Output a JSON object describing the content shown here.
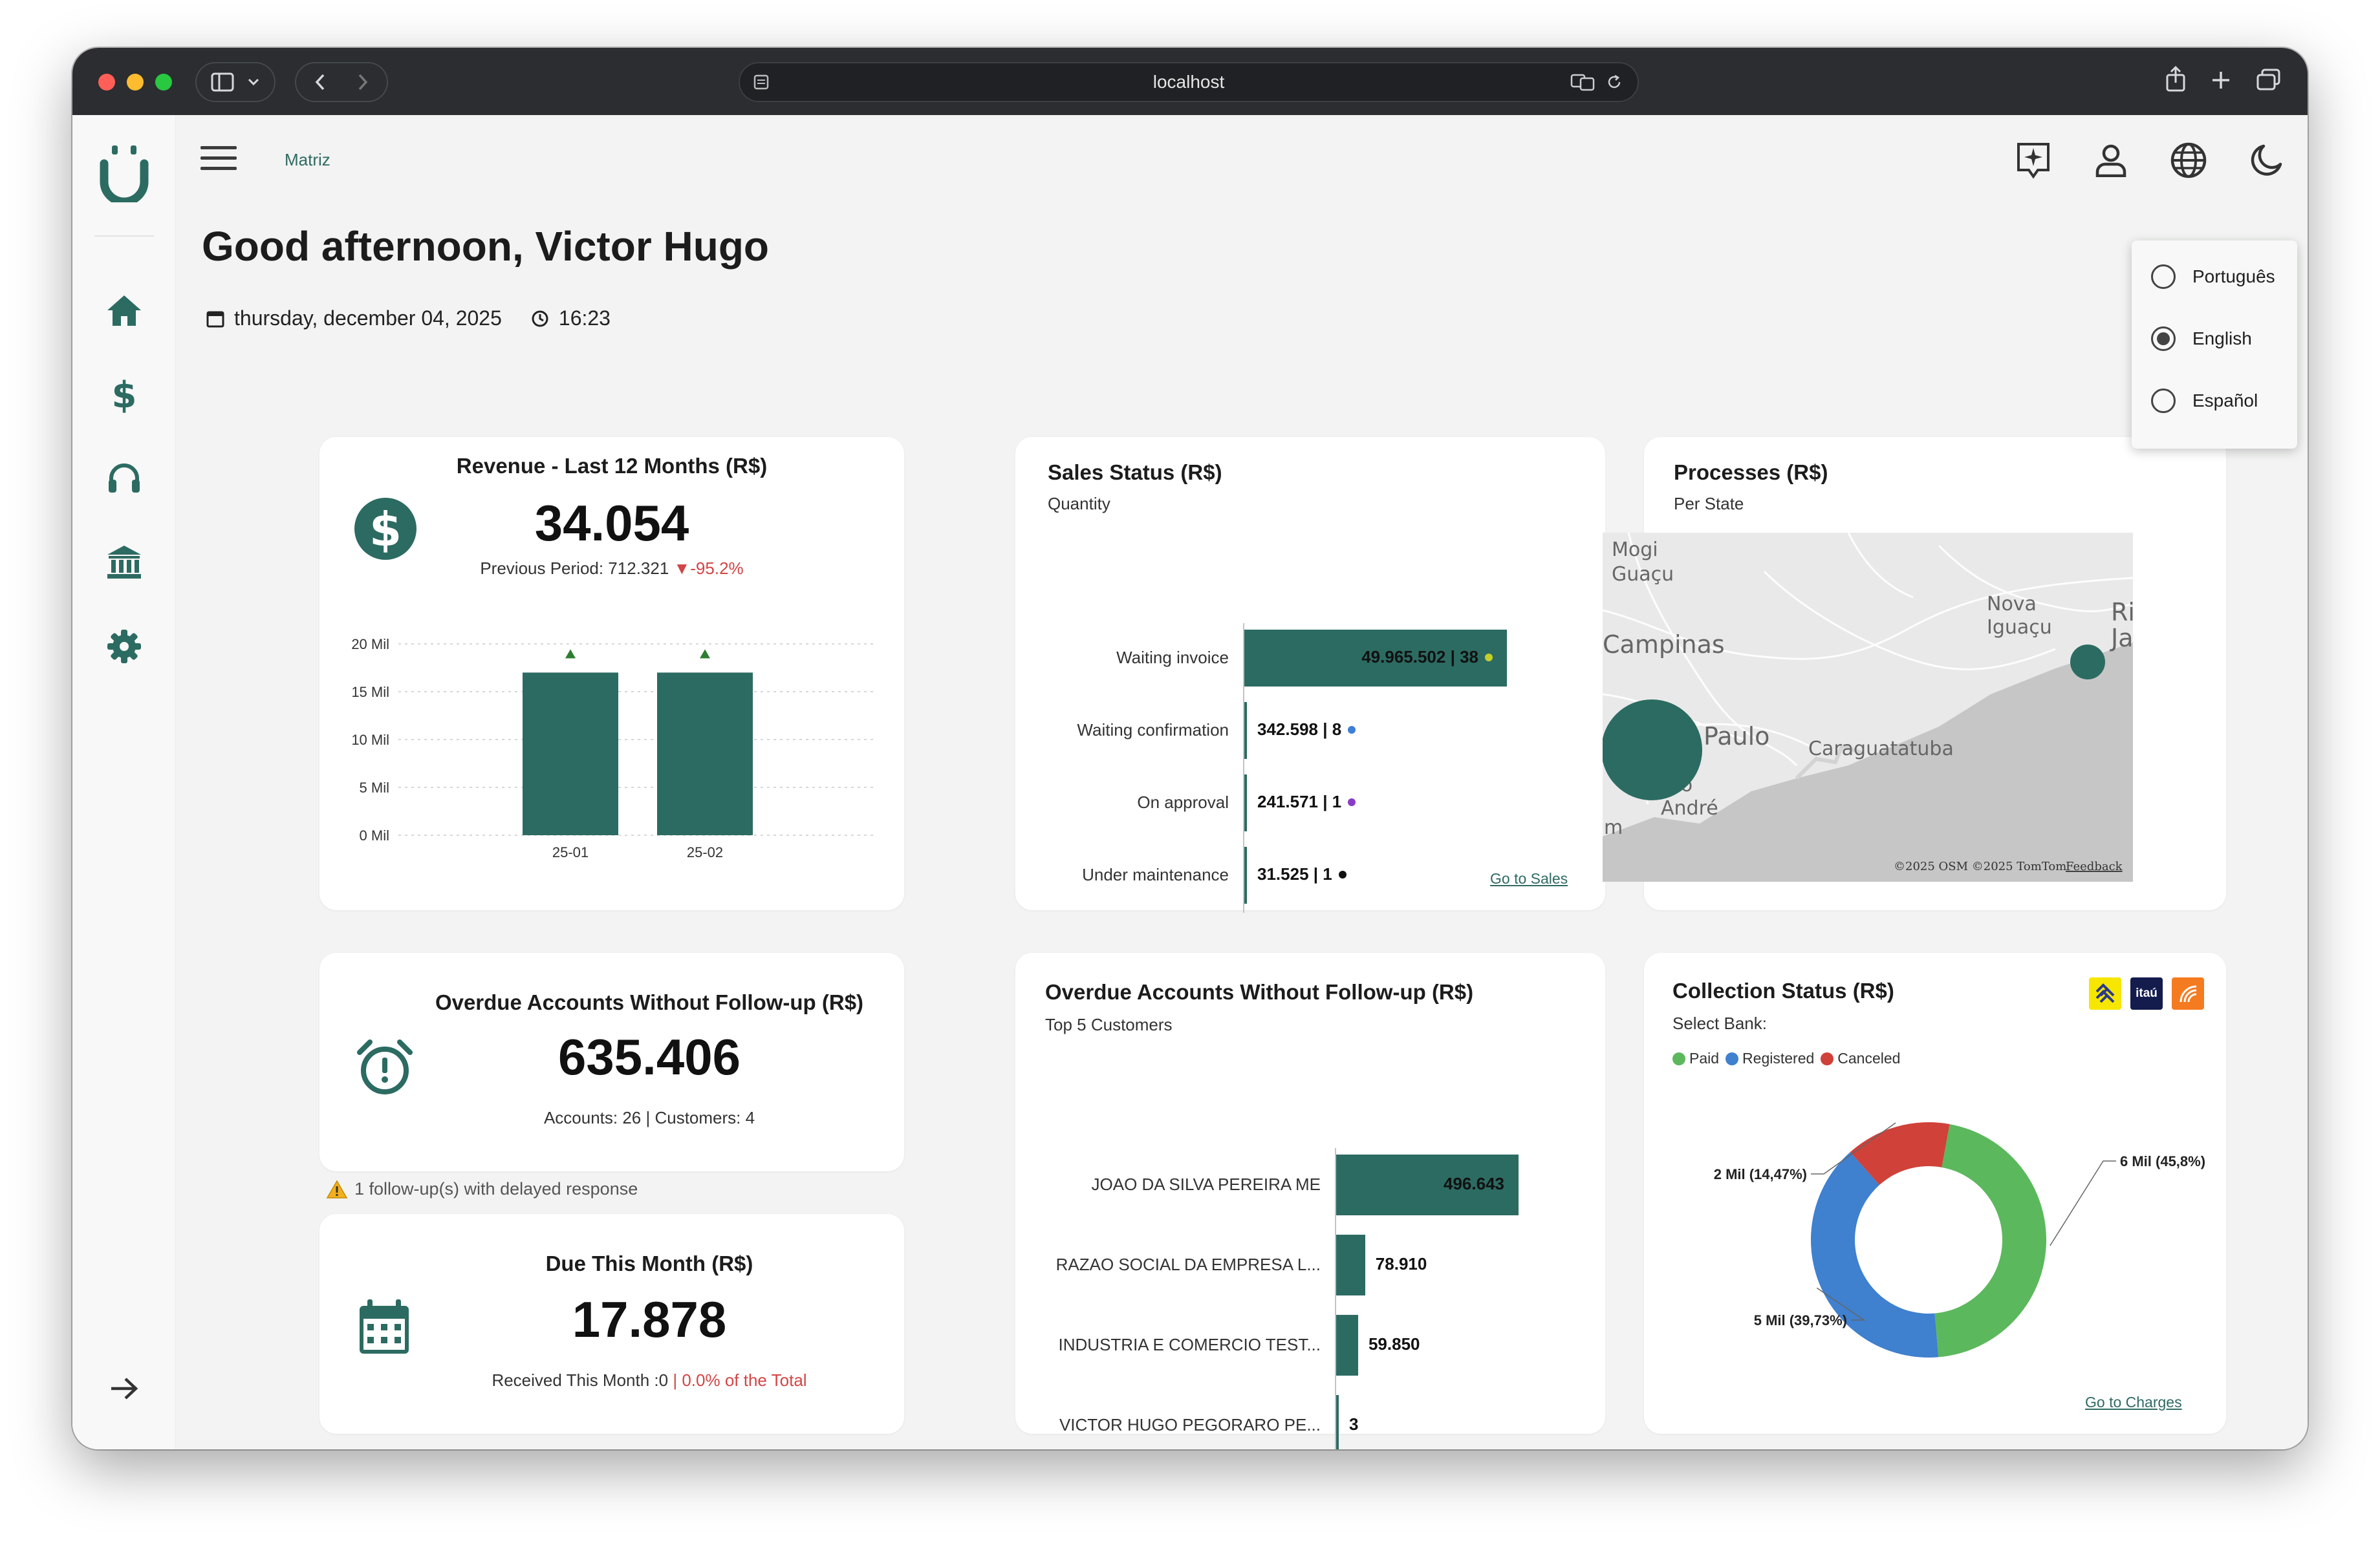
{
  "browser": {
    "url": "localhost"
  },
  "header": {
    "breadcrumb": "Matriz",
    "icons": [
      "ai-sparkle-icon",
      "user-icon",
      "globe-icon",
      "moon-icon"
    ]
  },
  "greeting": "Good afternoon, Victor Hugo",
  "date": "thursday, december 04, 2025",
  "time": "16:23",
  "language_menu": {
    "options": [
      "Português",
      "English",
      "Español"
    ],
    "selected": "English"
  },
  "sidebar": {
    "items": [
      "home-icon",
      "dollar-icon",
      "headset-icon",
      "bank-icon",
      "gear-icon"
    ],
    "collapse_icon": "arrow-right-icon"
  },
  "revenue": {
    "title": "Revenue - Last 12 Months (R$)",
    "value": "34.054",
    "previous_label": "Previous Period: 712.321",
    "change": "-95.2%"
  },
  "sales_status": {
    "title": "Sales Status (R$)",
    "subtitle": "Quantity",
    "link": "Go to Sales"
  },
  "processes": {
    "title": "Processes (R$)",
    "subtitle": "Per State",
    "map_labels": [
      "Mogi Guaçu",
      "Campinas",
      "Nova Iguaçu",
      "Rio Jan",
      "Paulo",
      "Caraguatatuba",
      "nto André",
      "m"
    ],
    "attribution": "©2025 OSM  ©2025 TomTom",
    "feedback": "Feedback"
  },
  "overdue_summary": {
    "title": "Overdue Accounts Without Follow-up (R$)",
    "value": "635.406",
    "detail": "Accounts: 26 | Customers: 4"
  },
  "followup_warning": "1 follow-up(s) with delayed response",
  "due_month": {
    "title": "Due This Month (R$)",
    "value": "17.878",
    "received": "Received This Month :0",
    "separator": "|",
    "percent": "0.0% of the Total"
  },
  "overdue_top": {
    "title": "Overdue Accounts Without Follow-up (R$)",
    "subtitle": "Top 5 Customers"
  },
  "collection": {
    "title": "Collection Status (R$)",
    "subtitle": "Select Bank:",
    "banks": [
      "banco-do-brasil-logo",
      "itaú",
      "santander-logo"
    ],
    "link": "Go to Charges"
  },
  "chart_data": [
    {
      "type": "bar",
      "title": "Revenue - Last 12 Months (R$)",
      "categories": [
        "25-01",
        "25-02"
      ],
      "values": [
        17000,
        17000
      ],
      "yticks": [
        "0 Mil",
        "5 Mil",
        "10 Mil",
        "15 Mil",
        "20 Mil"
      ],
      "ylim": [
        0,
        20000
      ],
      "markers": "up-triangle",
      "marker_color": "#2e7d32",
      "bar_color": "#2c6b62",
      "grid": true
    },
    {
      "type": "bar",
      "orientation": "horizontal",
      "title": "Sales Status (R$)",
      "categories": [
        "Waiting invoice",
        "Waiting confirmation",
        "On approval",
        "Under maintenance"
      ],
      "values": [
        49965502,
        342598,
        241571,
        31525
      ],
      "quantities": [
        38,
        8,
        1,
        1
      ],
      "labels": [
        "49.965.502 | 38",
        "342.598 | 8",
        "241.571 | 1",
        "31.525 | 1"
      ],
      "dot_colors": [
        "#c6cf2a",
        "#3d7fd4",
        "#8a3bc7",
        "#111111"
      ]
    },
    {
      "type": "bar",
      "orientation": "horizontal",
      "title": "Overdue Accounts Without Follow-up (R$)",
      "categories": [
        "JOAO DA SILVA PEREIRA ME",
        "RAZAO SOCIAL DA EMPRESA L...",
        "INDUSTRIA E COMERCIO TEST...",
        "VICTOR HUGO PEGORARO PE..."
      ],
      "values": [
        496643,
        78910,
        59850,
        3
      ],
      "labels": [
        "496.643",
        "78.910",
        "59.850",
        "3"
      ]
    },
    {
      "type": "pie",
      "title": "Collection Status (R$)",
      "categories": [
        "Paid",
        "Registered",
        "Canceled"
      ],
      "values": [
        45.8,
        39.73,
        14.47
      ],
      "labels": [
        "6 Mil (45,8%)",
        "5 Mil (39,73%)",
        "2 Mil (14,47%)"
      ],
      "colors": [
        "#5cb85c",
        "#3f80cf",
        "#d0413a"
      ],
      "legend": "top-left"
    }
  ]
}
